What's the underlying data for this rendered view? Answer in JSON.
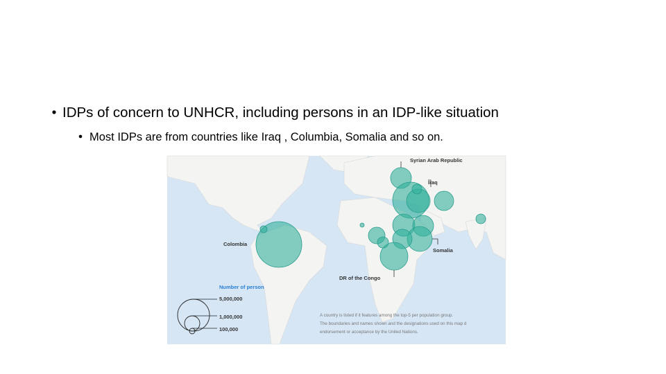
{
  "bullets": {
    "level1": "IDPs of concern to UNHCR, including persons in an IDP-like situation",
    "level2": "Most IDPs are from countries like Iraq , Columbia, Somalia and so on."
  },
  "map": {
    "labels": {
      "syria": "Syrian Arab Republic",
      "iraq": "Iraq",
      "colombia": "Colombia",
      "somalia": "Somalia",
      "drc": "DR of the Congo"
    },
    "legend": {
      "title": "Number of person",
      "items": [
        "5,000,000",
        "1,000,000",
        "100,000"
      ]
    },
    "notes": [
      "A country is listed if it features among the top-5 per population group.",
      "The boundaries and names shown and the designations used on this map d",
      "endorsement or acceptance by the United Nations."
    ]
  }
}
